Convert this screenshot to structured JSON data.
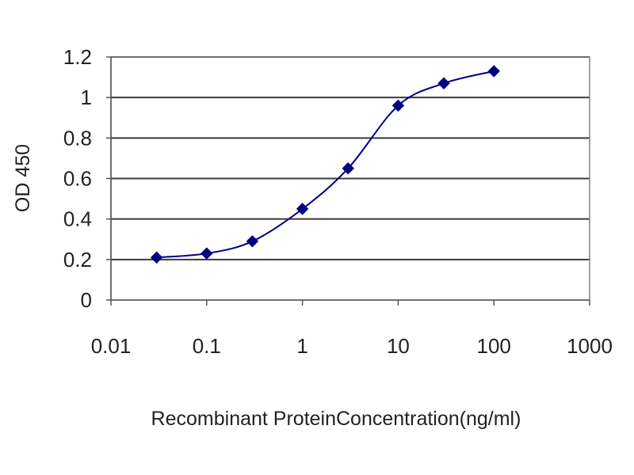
{
  "chart_data": {
    "type": "line",
    "title": "",
    "xlabel": "Recombinant ProteinConcentration(ng/ml)",
    "ylabel": "OD 450",
    "x_scale": "log",
    "xlim": [
      0.01,
      1000
    ],
    "ylim": [
      0,
      1.2
    ],
    "x_ticks": [
      0.01,
      0.1,
      1,
      10,
      100,
      1000
    ],
    "x_tick_labels": [
      "0.01",
      "0.1",
      "1",
      "10",
      "100",
      "1000"
    ],
    "y_ticks": [
      0,
      0.2,
      0.4,
      0.6,
      0.8,
      1,
      1.2
    ],
    "y_tick_labels": [
      "0",
      "0.2",
      "0.4",
      "0.6",
      "0.8",
      "1",
      "1.2"
    ],
    "grid": "horizontal",
    "legend": "none",
    "series": [
      {
        "x": [
          0.03,
          0.1,
          0.3,
          1,
          3,
          10,
          30,
          100
        ],
        "y": [
          0.21,
          0.23,
          0.29,
          0.45,
          0.65,
          0.96,
          1.07,
          1.13
        ],
        "color": "#000080",
        "marker": "diamond",
        "smooth": true
      }
    ]
  }
}
